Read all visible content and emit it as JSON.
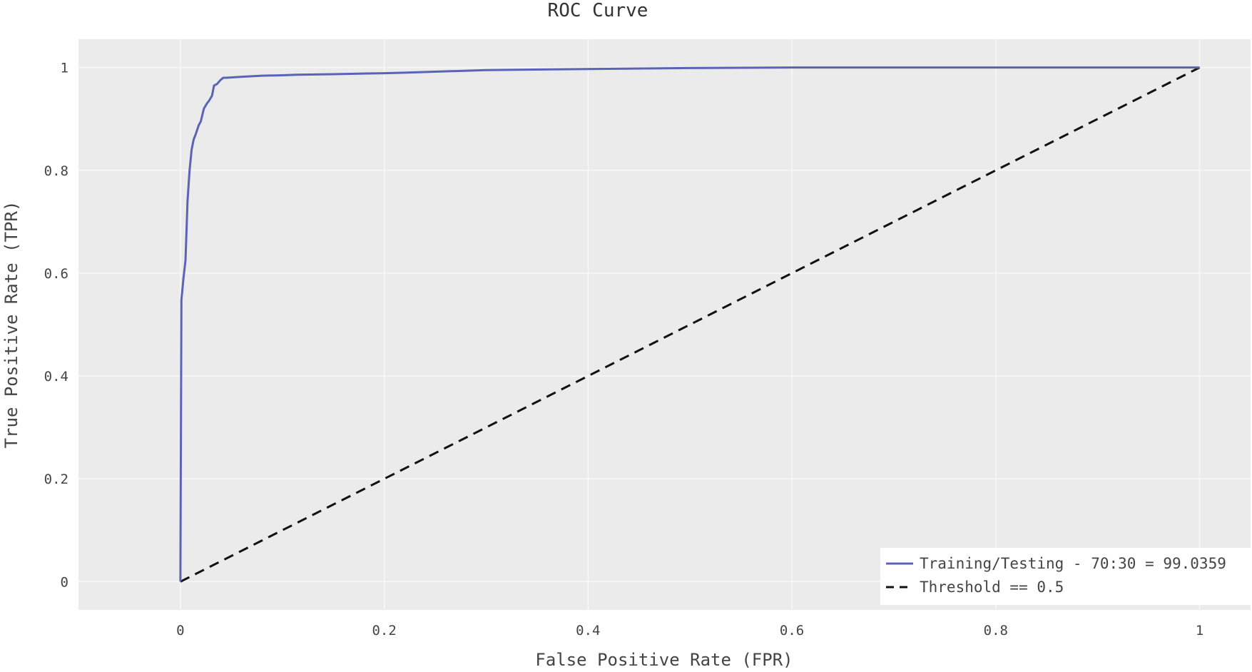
{
  "chart_data": {
    "type": "line",
    "title": "ROC Curve",
    "xlabel": "False Positive Rate (FPR)",
    "ylabel": "True Positive Rate (TPR)",
    "xlim": [
      -0.1,
      1.05
    ],
    "ylim": [
      -0.055,
      1.055
    ],
    "xticks": [
      0,
      0.2,
      0.4,
      0.6,
      0.8,
      1
    ],
    "xtick_labels": [
      "0",
      "0.2",
      "0.4",
      "0.6",
      "0.8",
      "1"
    ],
    "yticks": [
      0,
      0.2,
      0.4,
      0.6,
      0.8,
      1
    ],
    "ytick_labels": [
      "0",
      "0.2",
      "0.4",
      "0.6",
      "0.8",
      "1"
    ],
    "grid": true,
    "legend_position": "bottom-right",
    "colors": {
      "plot_background": "#ebebeb",
      "grid": "#f8f8f8",
      "legend_background": "#ffffff"
    },
    "series": [
      {
        "name": "Training/Testing - 70:30 = 99.0359",
        "color": "#5b63b7",
        "dash": "solid",
        "x": [
          0,
          0.001,
          0.003,
          0.005,
          0.007,
          0.009,
          0.011,
          0.013,
          0.015,
          0.018,
          0.02,
          0.023,
          0.026,
          0.028,
          0.031,
          0.033,
          0.036,
          0.039,
          0.042,
          0.045,
          0.06,
          0.08,
          0.1,
          0.115,
          0.15,
          0.2,
          0.22,
          0.3,
          0.4,
          0.5,
          0.6,
          0.8,
          1.0
        ],
        "y": [
          0,
          0.548,
          0.59,
          0.625,
          0.74,
          0.8,
          0.84,
          0.86,
          0.87,
          0.888,
          0.895,
          0.92,
          0.93,
          0.935,
          0.945,
          0.965,
          0.968,
          0.975,
          0.98,
          0.98,
          0.982,
          0.984,
          0.985,
          0.986,
          0.987,
          0.989,
          0.99,
          0.995,
          0.997,
          0.999,
          1.0,
          1.0,
          1.0
        ]
      },
      {
        "name": "Threshold == 0.5",
        "color": "#111111",
        "dash": "dashed",
        "x": [
          0,
          1
        ],
        "y": [
          0,
          1
        ]
      }
    ]
  }
}
